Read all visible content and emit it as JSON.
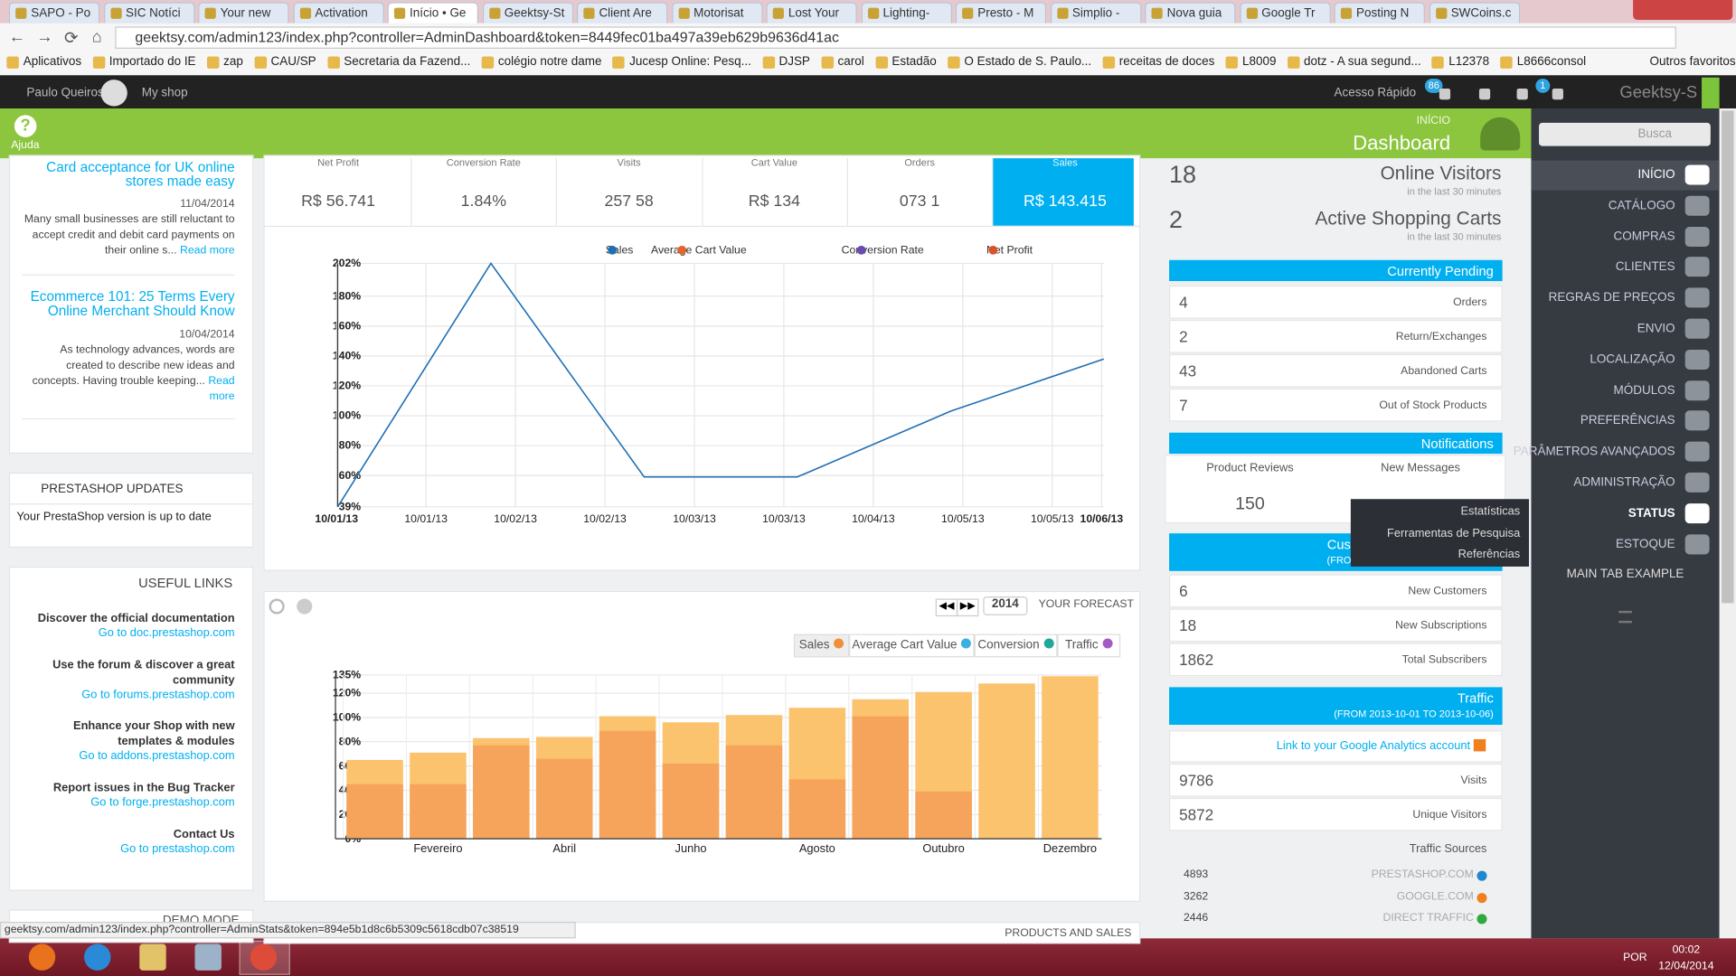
{
  "browser": {
    "tabs": [
      "SAPO - Po",
      "SIC Notíci",
      "Your new",
      "Activation",
      "Início • Ge",
      "Geektsy-St",
      "Client Are",
      "Motorisat",
      "Lost Your",
      "Lighting-",
      "Presto - M",
      "Simplio -",
      "Nova guia",
      "Google Tr",
      "Posting N",
      "SWCoins.c"
    ],
    "url": "geektsy.com/admin123/index.php?controller=AdminDashboard&token=8449fec01ba497a39eb629b9636d41ac",
    "bookmarks": [
      "Aplicativos",
      "Importado do IE",
      "zap",
      "CAU/SP",
      "Secretaria da Fazend...",
      "colégio notre dame",
      "Jucesp Online: Pesq...",
      "DJSP",
      "carol",
      "Estadão",
      "O Estado de S. Paulo...",
      "receitas de doces",
      "L8009",
      "dotz - A sua segund...",
      "L12378",
      "L8666consol"
    ],
    "other_bookmarks": "Outros favoritos"
  },
  "topbar": {
    "user": "Paulo Queiros",
    "shop": "My shop",
    "quick_access": "Acesso Rápido",
    "badge_orders": "86",
    "badge_cart": "1",
    "shop_name": "Geektsy-S"
  },
  "header": {
    "help": "Ajuda",
    "breadcrumb": "INÍCIO",
    "title": "Dashboard"
  },
  "news": [
    {
      "title": "Card acceptance for UK online stores made easy",
      "date": "11/04/2014",
      "text": "Many small businesses are still reluctant to accept credit and debit card payments on their online s...",
      "more": "Read more"
    },
    {
      "title": "Ecommerce 101: 25 Terms Every Online Merchant Should Know",
      "date": "10/04/2014",
      "text": "As technology advances, words are created to describe new ideas and concepts. Having trouble keeping...",
      "more": "Read more"
    }
  ],
  "updates": {
    "title": "PRESTASHOP UPDATES",
    "text": "Your PrestaShop version is up to date"
  },
  "links": {
    "title": "USEFUL LINKS",
    "items": [
      {
        "label": "Discover the official documentation",
        "url": "Go to doc.prestashop.com"
      },
      {
        "label": "Use the forum & discover a great community",
        "url": "Go to forums.prestashop.com"
      },
      {
        "label": "Enhance your Shop with new templates & modules",
        "url": "Go to addons.prestashop.com"
      },
      {
        "label": "Report issues in the Bug Tracker",
        "url": "Go to forge.prestashop.com"
      },
      {
        "label": "Contact Us",
        "url": "Go to prestashop.com"
      }
    ]
  },
  "demo": "DEMO MODE",
  "kpis": [
    {
      "label": "Net Profit",
      "value": "R$ 56.741"
    },
    {
      "label": "Conversion Rate",
      "value": "1.84%"
    },
    {
      "label": "Visits",
      "value": "257 58"
    },
    {
      "label": "Cart Value",
      "value": "R$ 134"
    },
    {
      "label": "Orders",
      "value": "073 1"
    },
    {
      "label": "Sales",
      "value": "R$ 143.415"
    }
  ],
  "line_chart": {
    "type": "line",
    "legend": [
      {
        "name": "Sales",
        "color": "#1f6fb2"
      },
      {
        "name": "Average Cart Value",
        "color": "#e0662a"
      },
      {
        "name": "Conversion Rate",
        "color": "#6a4bb0"
      },
      {
        "name": "Net Profit",
        "color": "#d9532c"
      }
    ],
    "series": [
      {
        "color": "#1f6fb2",
        "values": [
          39,
          202,
          59,
          59,
          103,
          138
        ]
      }
    ],
    "xticks": [
      "10/01/13",
      "10/01/13",
      "10/02/13",
      "10/02/13",
      "10/03/13",
      "10/03/13",
      "10/04/13",
      "10/05/13",
      "10/05/13",
      "10/06/13"
    ],
    "ylim": [
      39,
      202
    ],
    "yticks": [
      {
        "value": 202,
        "label": "202%"
      },
      {
        "value": 180,
        "label": "180%"
      },
      {
        "value": 160,
        "label": "160%"
      },
      {
        "value": 140,
        "label": "140%"
      },
      {
        "value": 120,
        "label": "120%"
      },
      {
        "value": 100,
        "label": "100%"
      },
      {
        "value": 80,
        "label": "80%"
      },
      {
        "value": 60,
        "label": "60%"
      },
      {
        "value": 39,
        "label": "39%"
      }
    ],
    "grid": true
  },
  "forecast": {
    "year": "2014",
    "title": "YOUR FORECAST",
    "legend": [
      {
        "name": "Sales",
        "color": "#f0903a"
      },
      {
        "name": "Average Cart Value",
        "color": "#3ab0e2"
      },
      {
        "name": "Conversion",
        "color": "#22a89a"
      },
      {
        "name": "Traffic",
        "color": "#a45cc4"
      }
    ]
  },
  "bar_chart": {
    "type": "bar",
    "categories": [
      null,
      "Fevereiro",
      null,
      "Abril",
      null,
      "Junho",
      null,
      "Agosto",
      null,
      "Outubro",
      null,
      "Dezembro"
    ],
    "series": [
      {
        "color": "#fbc36d",
        "values": [
          65,
          71,
          83,
          84,
          101,
          96,
          102,
          108,
          115,
          121,
          128,
          134
        ]
      },
      {
        "color": "#f6a45c",
        "values": [
          45,
          45,
          77,
          66,
          89,
          62,
          77,
          49,
          101,
          39,
          0,
          0
        ]
      }
    ],
    "ylim": [
      0,
      135
    ],
    "yticks": [
      {
        "value": 135,
        "label": "135%"
      },
      {
        "value": 120,
        "label": "120%"
      },
      {
        "value": 100,
        "label": "100%"
      },
      {
        "value": 80,
        "label": "80%"
      },
      {
        "value": 60,
        "label": "60%"
      },
      {
        "value": 40,
        "label": "40%"
      },
      {
        "value": 20,
        "label": "20%"
      },
      {
        "value": 0,
        "label": "0%"
      }
    ],
    "grid": true
  },
  "products_title": "PRODUCTS AND SALES",
  "live": [
    {
      "value": "18",
      "label": "Online Visitors",
      "note": "in the last 30 minutes"
    },
    {
      "value": "2",
      "label": "Active Shopping Carts",
      "note": "in the last 30 minutes"
    }
  ],
  "pending": {
    "title": "Currently Pending",
    "rows": [
      {
        "value": "4",
        "label": "Orders"
      },
      {
        "value": "2",
        "label": "Return/Exchanges"
      },
      {
        "value": "43",
        "label": "Abandoned Carts"
      },
      {
        "value": "7",
        "label": "Out of Stock Products"
      }
    ]
  },
  "notifications": {
    "title": "Notifications",
    "reviews_label": "Product Reviews",
    "reviews_value": "150",
    "messages_label": "New Messages"
  },
  "customers": {
    "title": "Cus",
    "subtitle": "(FROM",
    "rows": [
      {
        "value": "6",
        "label": "New Customers"
      },
      {
        "value": "18",
        "label": "New Subscriptions"
      },
      {
        "value": "1862",
        "label": "Total Subscribers"
      }
    ]
  },
  "traffic": {
    "title": "Traffic",
    "subtitle": "(FROM 2013-10-01 TO 2013-10-06)",
    "link": "Link to your Google Analytics account",
    "rows": [
      {
        "value": "9786",
        "label": "Visits"
      },
      {
        "value": "5872",
        "label": "Unique Visitors"
      }
    ],
    "sources_title": "Traffic Sources",
    "sources": [
      {
        "value": "4893",
        "label": "PRESTASHOP.COM",
        "color": "#1e88d0"
      },
      {
        "value": "3262",
        "label": "GOOGLE.COM",
        "color": "#f07f1e"
      },
      {
        "value": "2446",
        "label": "DIRECT TRAFFIC",
        "color": "#2eaa3c"
      }
    ]
  },
  "menu": {
    "search": "Busca",
    "items": [
      "INÍCIO",
      "CATÁLOGO",
      "COMPRAS",
      "CLIENTES",
      "REGRAS DE PREÇOS",
      "ENVIO",
      "LOCALIZAÇÃO",
      "MÓDULOS",
      "PREFERÊNCIAS",
      "PARÂMETROS AVANÇADOS",
      "ADMINISTRAÇÃO",
      "STATUS",
      "ESTOQUE",
      "MAIN TAB EXAMPLE"
    ],
    "submenu": [
      "Estatísticas",
      "Ferramentas de Pesquisa",
      "Referências"
    ]
  },
  "status_url": "geektsy.com/admin123/index.php?controller=AdminStats&token=894e5b1d8c6b5309c5618cdb07c38519",
  "taskbar": {
    "lang": "POR",
    "time": "00:02",
    "date": "12/04/2014"
  }
}
